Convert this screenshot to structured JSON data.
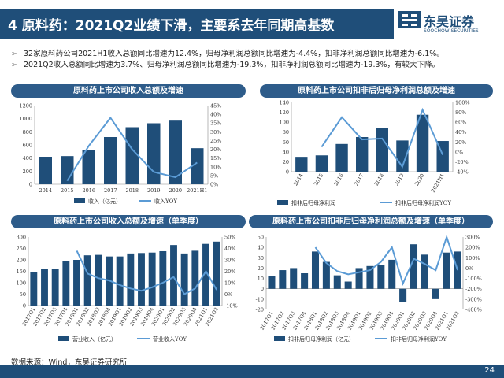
{
  "header": {
    "title": "4 原料药：2021Q2业绩下滑，主要系去年同期高基数"
  },
  "logo": {
    "name_cn": "东吴证券",
    "name_en": "SOOCHOW SECURITIES"
  },
  "bullets": [
    "32家原料药公司2021H1收入总额同比增速为12.4%，归母净利润总额同比增速为-4.4%，扣非净利润总额同比增速为-6.1%。",
    "2021Q2收入总额同比增速为3.7%、归母净利润总额同比增速为-19.3%，扣非净利润总额同比增速为-19.3%，有较大下降。"
  ],
  "bullet_marker": "➢",
  "source": "数据来源：Wind，东吴证券研究所",
  "page_number": "24",
  "colors": {
    "bar": "#1f4e79",
    "line": "#5b9bd5",
    "header": "#1f4e79"
  },
  "chart_data": [
    {
      "type": "bar",
      "title": "原料药上市公司收入总额及增速",
      "categories": [
        "2014",
        "2015",
        "2016",
        "2017",
        "2018",
        "2019",
        "2020",
        "2021H1"
      ],
      "series": [
        {
          "name": "收入（亿元）",
          "type": "bar",
          "axis": "left",
          "values": [
            420,
            430,
            520,
            720,
            870,
            930,
            970,
            550
          ]
        },
        {
          "name": "收入YOY",
          "type": "line",
          "axis": "right",
          "values": [
            null,
            2,
            22,
            38,
            20,
            7,
            4,
            12.4
          ]
        }
      ],
      "y_left": {
        "min": 0,
        "max": 1200,
        "ticks": [
          0,
          200,
          400,
          600,
          800,
          1000,
          1200
        ]
      },
      "y_right": {
        "min": 0,
        "max": 45,
        "ticks": [
          "0%",
          "5%",
          "10%",
          "15%",
          "20%",
          "25%",
          "30%",
          "35%",
          "40%",
          "45%"
        ]
      },
      "legend_placement": "bottom"
    },
    {
      "type": "bar",
      "title": "原料药上市公司扣非后归母净利润总额及增速",
      "categories": [
        "2014",
        "2015",
        "2016",
        "2017",
        "2018",
        "2019",
        "2020",
        "2021H1"
      ],
      "series": [
        {
          "name": "扣非后归母净利润",
          "type": "bar",
          "axis": "left",
          "values": [
            30,
            33,
            56,
            70,
            89,
            63,
            115,
            62
          ]
        },
        {
          "name": "扣非后归母净利润YOY",
          "type": "line",
          "axis": "right",
          "values": [
            null,
            10,
            70,
            25,
            27,
            -30,
            85,
            -6
          ]
        }
      ],
      "y_left": {
        "min": 0,
        "max": 140,
        "ticks": [
          0,
          20,
          40,
          60,
          80,
          100,
          120,
          140
        ]
      },
      "y_right": {
        "min": -40,
        "max": 100,
        "ticks": [
          "-40%",
          "-20%",
          "0%",
          "20%",
          "40%",
          "60%",
          "80%",
          "100%"
        ]
      },
      "legend_placement": "bottom"
    },
    {
      "type": "bar",
      "title": "原料药上市公司收入总额及增速（单季度）",
      "categories": [
        "2017Q1",
        "2017Q2",
        "2017Q3",
        "2017Q4",
        "2018Q1",
        "2018Q2",
        "2018Q3",
        "2018Q4",
        "2019Q1",
        "2019Q2",
        "2019Q3",
        "2019Q4",
        "2020Q1",
        "2020Q2",
        "2020Q3",
        "2020Q4",
        "2021Q1",
        "2021Q2"
      ],
      "series": [
        {
          "name": "营业收入（亿元）",
          "type": "bar",
          "axis": "left",
          "values": [
            145,
            160,
            162,
            195,
            200,
            220,
            222,
            215,
            215,
            228,
            230,
            232,
            238,
            265,
            228,
            240,
            270,
            280
          ]
        },
        {
          "name": "营业收入YOY",
          "type": "line",
          "axis": "right",
          "values": [
            null,
            null,
            null,
            null,
            38,
            18,
            14,
            12,
            8,
            5,
            3,
            6,
            10,
            15,
            0,
            5,
            20,
            3.7
          ]
        }
      ],
      "y_left": {
        "min": 0,
        "max": 300,
        "ticks": [
          0,
          50,
          100,
          150,
          200,
          250,
          300
        ]
      },
      "y_right": {
        "min": -10,
        "max": 50,
        "ticks": [
          "-10%",
          "0%",
          "10%",
          "20%",
          "30%",
          "40%",
          "50%"
        ]
      },
      "legend_placement": "bottom"
    },
    {
      "type": "bar",
      "title": "原料药上市公司扣非后归母净利润总额及增速（单季度）",
      "categories": [
        "2017Q1",
        "2017Q2",
        "2017Q3",
        "2017Q4",
        "2018Q1",
        "2018Q2",
        "2018Q3",
        "2018Q4",
        "2019Q1",
        "2019Q2",
        "2019Q3",
        "2019Q4",
        "2020Q1",
        "2020Q2",
        "2020Q3",
        "2020Q4",
        "2021Q1",
        "2021Q2"
      ],
      "series": [
        {
          "name": "扣非后归母净利润（亿元）",
          "type": "bar",
          "axis": "left",
          "values": [
            12,
            18,
            20,
            15,
            36,
            26,
            13,
            7,
            20,
            22,
            23,
            28,
            -13,
            43,
            33,
            -10,
            35,
            36
          ]
        },
        {
          "name": "扣非后归母净利润YOY",
          "type": "line",
          "axis": "right",
          "values": [
            null,
            null,
            null,
            null,
            200,
            50,
            -30,
            -60,
            -40,
            -20,
            60,
            200,
            -150,
            90,
            40,
            -20,
            300,
            -19.3
          ]
        }
      ],
      "y_left": {
        "min": -20,
        "max": 50,
        "ticks": [
          -20,
          -10,
          0,
          10,
          20,
          30,
          40,
          50
        ]
      },
      "y_right": {
        "min": -400,
        "max": 300,
        "ticks": [
          "-400%",
          "-300%",
          "-200%",
          "-100%",
          "0%",
          "100%",
          "200%",
          "300%"
        ]
      },
      "legend_placement": "bottom"
    }
  ]
}
